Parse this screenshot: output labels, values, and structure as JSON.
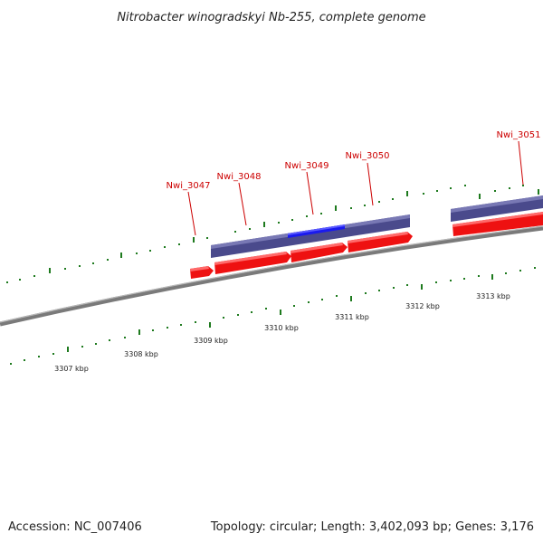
{
  "title": "Nitrobacter winogradskyi Nb-255, complete genome",
  "footer": {
    "accession": "Accession: NC_007406",
    "topology": "Topology: circular; Length: 3,402,093 bp; Genes: 3,176"
  },
  "colors": {
    "backbone": "#8a8a8a",
    "forward_gene": "#ee1111",
    "cds_band": "#4a4a8c",
    "highlight_band": "#1a1aee",
    "gene_label": "#cc0000",
    "tick_green": "#1e7a1e"
  },
  "genes": [
    {
      "id": "Nwi_3047",
      "label": "Nwi_3047"
    },
    {
      "id": "Nwi_3048",
      "label": "Nwi_3048"
    },
    {
      "id": "Nwi_3049",
      "label": "Nwi_3049"
    },
    {
      "id": "Nwi_3050",
      "label": "Nwi_3050"
    },
    {
      "id": "Nwi_3051",
      "label": "Nwi_3051"
    }
  ],
  "ruler_ticks": [
    {
      "label": "3307 kbp"
    },
    {
      "label": "3308 kbp"
    },
    {
      "label": "3309 kbp"
    },
    {
      "label": "3310 kbp"
    },
    {
      "label": "3311 kbp"
    },
    {
      "label": "3312 kbp"
    },
    {
      "label": "3313 kbp"
    }
  ]
}
